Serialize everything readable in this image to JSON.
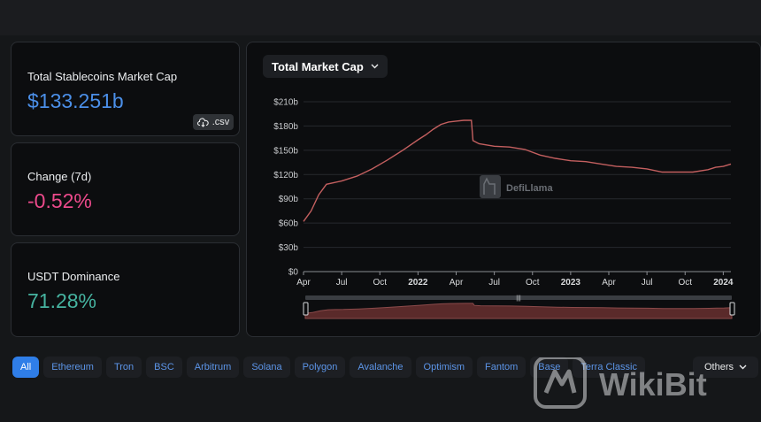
{
  "stats": [
    {
      "label": "Total Stablecoins Market Cap",
      "value": "$133.251b",
      "color": "#4b8fe8"
    },
    {
      "label": "Change (7d)",
      "value": "-0.52%",
      "color": "#ec4a8b"
    },
    {
      "label": "USDT Dominance",
      "value": "71.28%",
      "color": "#46b3a0"
    }
  ],
  "csv_label": ".csv",
  "chart_selector": "Total Market Cap",
  "chart_watermark": "DefiLlama",
  "tabs": [
    "All",
    "Ethereum",
    "Tron",
    "BSC",
    "Arbitrum",
    "Solana",
    "Polygon",
    "Avalanche",
    "Optimism",
    "Fantom",
    "Base",
    "Terra Classic"
  ],
  "others_label": "Others",
  "page_watermark": "WikiBit",
  "colors": {
    "line": "#c35f5f",
    "fill": "#5a2a2a",
    "accent": "#2f7ee8"
  },
  "chart_data": {
    "type": "area",
    "title": "Total Market Cap",
    "xlabel": "",
    "ylabel": "",
    "ylim": [
      0,
      210
    ],
    "yticks": [
      "$0",
      "$30b",
      "$60b",
      "$90b",
      "$120b",
      "$150b",
      "$180b",
      "$210b"
    ],
    "xticks": [
      {
        "label": "Apr",
        "t": 2021.25,
        "bold": false
      },
      {
        "label": "Jul",
        "t": 2021.5,
        "bold": false
      },
      {
        "label": "Oct",
        "t": 2021.75,
        "bold": false
      },
      {
        "label": "2022",
        "t": 2022.0,
        "bold": true
      },
      {
        "label": "Apr",
        "t": 2022.25,
        "bold": false
      },
      {
        "label": "Jul",
        "t": 2022.5,
        "bold": false
      },
      {
        "label": "Oct",
        "t": 2022.75,
        "bold": false
      },
      {
        "label": "2023",
        "t": 2023.0,
        "bold": true
      },
      {
        "label": "Apr",
        "t": 2023.25,
        "bold": false
      },
      {
        "label": "Jul",
        "t": 2023.5,
        "bold": false
      },
      {
        "label": "Oct",
        "t": 2023.75,
        "bold": false
      },
      {
        "label": "2024",
        "t": 2024.0,
        "bold": true
      }
    ],
    "xlim": [
      2021.25,
      2024.05
    ],
    "series": [
      {
        "points": [
          [
            2021.25,
            62
          ],
          [
            2021.3,
            75
          ],
          [
            2021.35,
            95
          ],
          [
            2021.4,
            108
          ],
          [
            2021.45,
            110
          ],
          [
            2021.5,
            112
          ],
          [
            2021.6,
            118
          ],
          [
            2021.7,
            127
          ],
          [
            2021.8,
            138
          ],
          [
            2021.9,
            150
          ],
          [
            2022.0,
            163
          ],
          [
            2022.05,
            169
          ],
          [
            2022.1,
            176
          ],
          [
            2022.15,
            182
          ],
          [
            2022.2,
            185
          ],
          [
            2022.25,
            186
          ],
          [
            2022.3,
            187
          ],
          [
            2022.35,
            187
          ],
          [
            2022.36,
            162
          ],
          [
            2022.4,
            158
          ],
          [
            2022.5,
            155
          ],
          [
            2022.6,
            154
          ],
          [
            2022.7,
            151
          ],
          [
            2022.8,
            144
          ],
          [
            2022.9,
            140
          ],
          [
            2023.0,
            137
          ],
          [
            2023.1,
            136
          ],
          [
            2023.2,
            133
          ],
          [
            2023.3,
            130
          ],
          [
            2023.4,
            129
          ],
          [
            2023.5,
            127
          ],
          [
            2023.6,
            123
          ],
          [
            2023.7,
            123
          ],
          [
            2023.8,
            123
          ],
          [
            2023.9,
            126
          ],
          [
            2023.95,
            129
          ],
          [
            2024.0,
            130
          ],
          [
            2024.05,
            133
          ]
        ]
      }
    ]
  }
}
